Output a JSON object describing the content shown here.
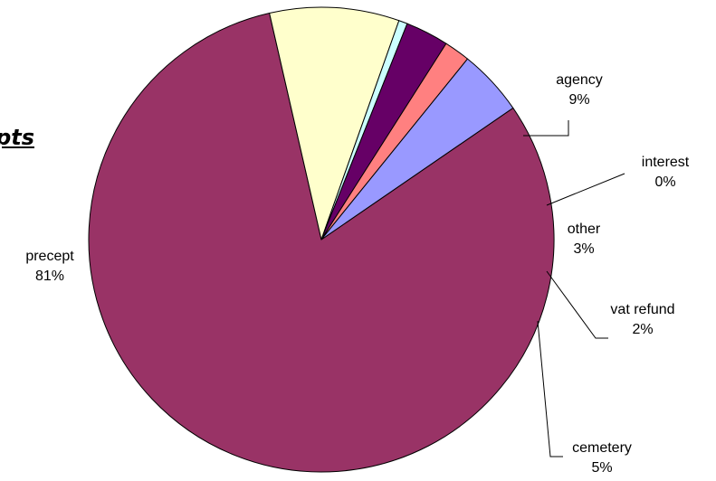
{
  "title_fragment": "pts",
  "chart_data": {
    "type": "pie",
    "title": "",
    "slices": [
      {
        "label": "precept",
        "percent_label": "81%",
        "value": 81.0,
        "color": "#993366"
      },
      {
        "label": "agency",
        "percent_label": "9%",
        "value": 9.0,
        "color": "#FFFFCC"
      },
      {
        "label": "interest",
        "percent_label": "0%",
        "value": 0.6,
        "color": "#CCFFFF"
      },
      {
        "label": "other",
        "percent_label": "3%",
        "value": 3.0,
        "color": "#660066"
      },
      {
        "label": "vat refund",
        "percent_label": "2%",
        "value": 1.8,
        "color": "#FF8080"
      },
      {
        "label": "cemetery",
        "percent_label": "5%",
        "value": 4.6,
        "color": "#9999FF"
      }
    ],
    "legend": "none",
    "data_labels": "outside with leader lines"
  }
}
